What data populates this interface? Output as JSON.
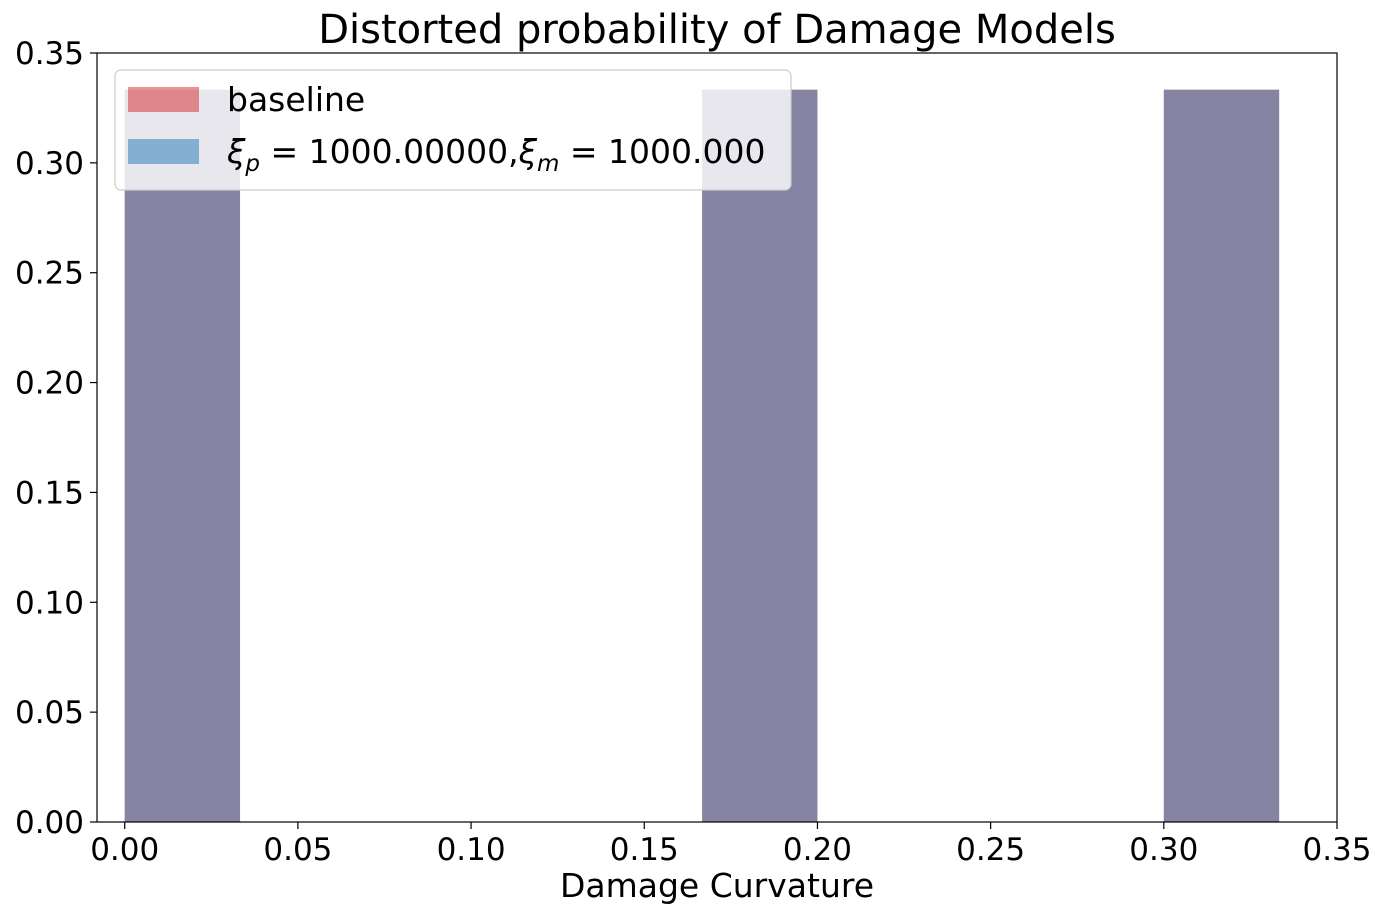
{
  "chart_data": {
    "type": "bar",
    "title": "Distorted probability of Damage Models",
    "xlabel": "Damage Curvature",
    "ylabel": "",
    "xlim": [
      -0.008,
      0.35
    ],
    "ylim": [
      0,
      0.35
    ],
    "xticks": [
      "0.00",
      "0.05",
      "0.10",
      "0.15",
      "0.20",
      "0.25",
      "0.30",
      "0.35"
    ],
    "xtick_values": [
      0.0,
      0.05,
      0.1,
      0.15,
      0.2,
      0.25,
      0.3,
      0.35
    ],
    "yticks": [
      "0.00",
      "0.05",
      "0.10",
      "0.15",
      "0.20",
      "0.25",
      "0.30",
      "0.35"
    ],
    "ytick_values": [
      0.0,
      0.05,
      0.1,
      0.15,
      0.2,
      0.25,
      0.3,
      0.35
    ],
    "grid": false,
    "legend_position": "upper-left",
    "series": [
      {
        "name": "baseline",
        "color": "#d62728",
        "alpha": 0.5,
        "bins": [
          {
            "x0": 0.0,
            "x1": 0.0333,
            "value": 0.3333
          },
          {
            "x0": 0.1667,
            "x1": 0.2,
            "value": 0.3333
          },
          {
            "x0": 0.3,
            "x1": 0.3333,
            "value": 0.3333
          }
        ]
      },
      {
        "name": "ξ_p = 1000.00000, ξ_m = 1000.000",
        "legend_parts": [
          "ξ",
          "p",
          " = 1000.00000,",
          "ξ",
          "m",
          " = 1000.000"
        ],
        "color": "#1f77b4",
        "alpha": 0.5,
        "bins": [
          {
            "x0": 0.0,
            "x1": 0.0333,
            "value": 0.3333
          },
          {
            "x0": 0.1667,
            "x1": 0.2,
            "value": 0.3333
          },
          {
            "x0": 0.3,
            "x1": 0.3333,
            "value": 0.3333
          }
        ]
      }
    ],
    "overlap_color": "#8486a2"
  }
}
